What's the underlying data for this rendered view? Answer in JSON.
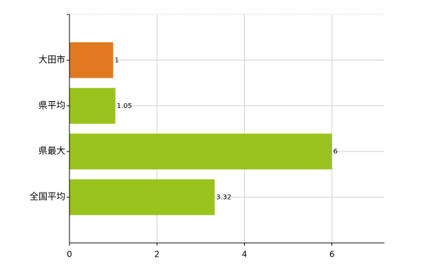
{
  "chart_data": {
    "type": "bar",
    "orientation": "horizontal",
    "categories": [
      "大田市",
      "県平均",
      "県最大",
      "全国平均"
    ],
    "values": [
      1,
      1.05,
      6,
      3.32
    ],
    "colors": [
      "#e07a20",
      "#99c31c",
      "#99c31c",
      "#99c31c"
    ],
    "xlim": [
      0,
      7.2
    ],
    "xticks": [
      0,
      2,
      4,
      6
    ],
    "grid": true
  }
}
